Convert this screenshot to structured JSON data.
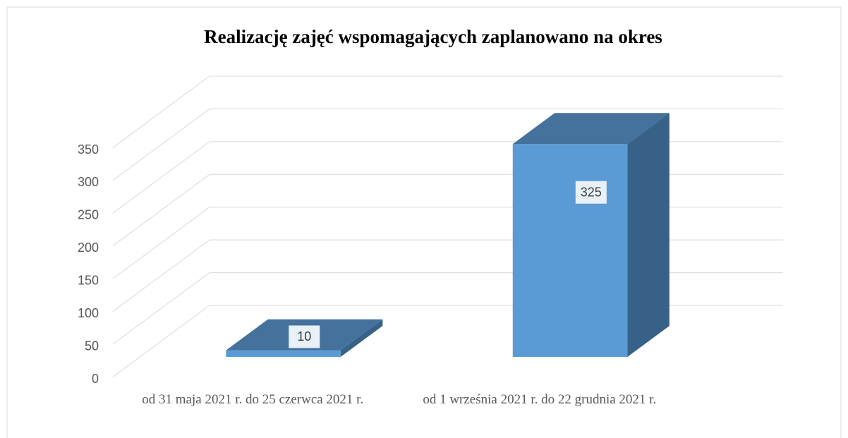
{
  "chart_data": {
    "type": "bar3d",
    "title": "Realizację zajęć wspomagających zaplanowano na okres",
    "categories": [
      "od 31 maja 2021 r. do 25 czerwca 2021 r.",
      "od 1 września 2021 r. do 22 grudnia 2021 r."
    ],
    "values": [
      10,
      325
    ],
    "color": "#5b9bd5",
    "ylim": [
      0,
      350
    ],
    "yticks": [
      0,
      50,
      100,
      150,
      200,
      250,
      300,
      350
    ],
    "grid": true
  }
}
